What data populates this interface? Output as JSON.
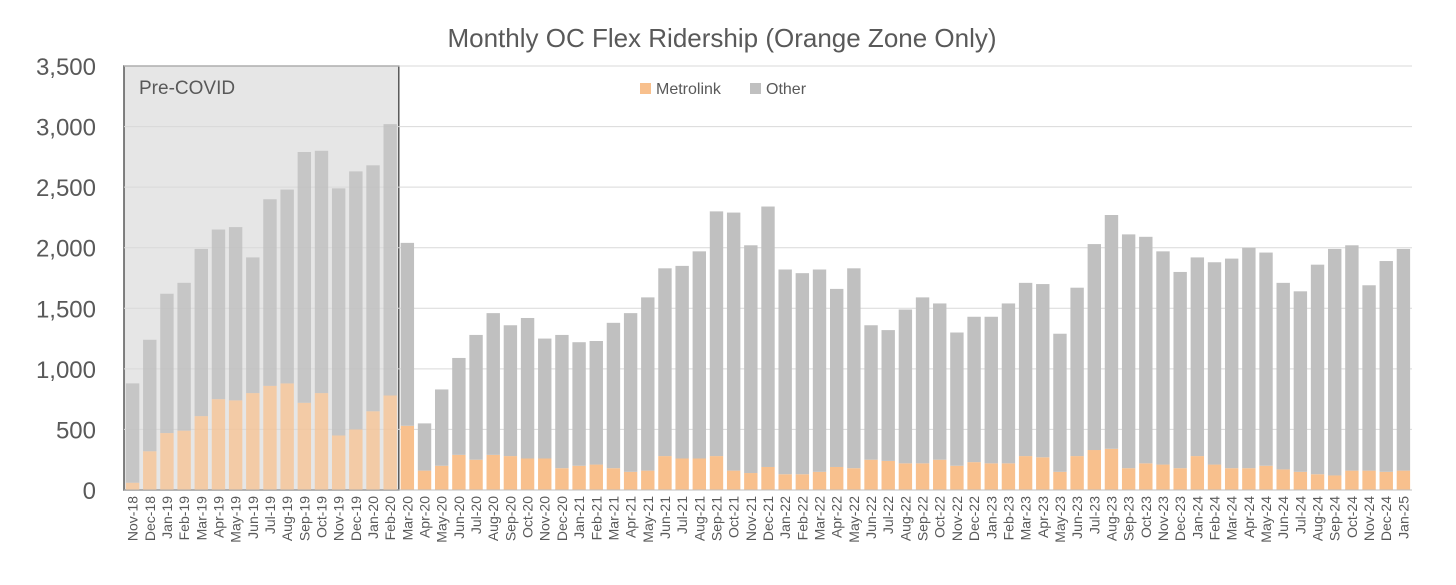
{
  "chart_data": {
    "type": "bar",
    "stacked": true,
    "title": "Monthly OC Flex Ridership (Orange Zone Only)",
    "xlabel": "",
    "ylabel": "",
    "ylim": [
      0,
      3500
    ],
    "y_ticks": [
      0,
      500,
      1000,
      1500,
      2000,
      2500,
      3000,
      3500
    ],
    "y_tick_labels": [
      "0",
      "500",
      "1,000",
      "1,500",
      "2,000",
      "2,500",
      "3,000",
      "3,500"
    ],
    "grid": true,
    "legend_position": "top-center",
    "shaded_region": {
      "label": "Pre-COVID",
      "from": "Nov-18",
      "to": "Feb-20",
      "color": "#e6e6e6"
    },
    "categories": [
      "Nov-18",
      "Dec-18",
      "Jan-19",
      "Feb-19",
      "Mar-19",
      "Apr-19",
      "May-19",
      "Jun-19",
      "Jul-19",
      "Aug-19",
      "Sep-19",
      "Oct-19",
      "Nov-19",
      "Dec-19",
      "Jan-20",
      "Feb-20",
      "Mar-20",
      "Apr-20",
      "May-20",
      "Jun-20",
      "Jul-20",
      "Aug-20",
      "Sep-20",
      "Oct-20",
      "Nov-20",
      "Dec-20",
      "Jan-21",
      "Feb-21",
      "Mar-21",
      "Apr-21",
      "May-21",
      "Jun-21",
      "Jul-21",
      "Aug-21",
      "Sep-21",
      "Oct-21",
      "Nov-21",
      "Dec-21",
      "Jan-22",
      "Feb-22",
      "Mar-22",
      "Apr-22",
      "May-22",
      "Jun-22",
      "Jul-22",
      "Aug-22",
      "Sep-22",
      "Oct-22",
      "Nov-22",
      "Dec-22",
      "Jan-23",
      "Feb-23",
      "Mar-23",
      "Apr-23",
      "May-23",
      "Jun-23",
      "Jul-23",
      "Aug-23",
      "Sep-23",
      "Oct-23",
      "Nov-23",
      "Dec-23",
      "Jan-24",
      "Feb-24",
      "Mar-24",
      "Apr-24",
      "May-24",
      "Jun-24",
      "Jul-24",
      "Aug-24",
      "Sep-24",
      "Oct-24",
      "Nov-24",
      "Dec-24",
      "Jan-25"
    ],
    "series": [
      {
        "name": "Metrolink",
        "color": "#f8c08d",
        "values": [
          60,
          320,
          470,
          490,
          610,
          750,
          740,
          800,
          860,
          880,
          720,
          800,
          450,
          500,
          650,
          780,
          530,
          160,
          200,
          290,
          250,
          290,
          280,
          260,
          260,
          180,
          200,
          210,
          180,
          150,
          160,
          280,
          260,
          260,
          280,
          160,
          140,
          190,
          130,
          130,
          150,
          190,
          180,
          250,
          240,
          220,
          220,
          250,
          200,
          230,
          220,
          220,
          280,
          270,
          150,
          280,
          330,
          340,
          180,
          220,
          210,
          180,
          280,
          210,
          180,
          180,
          200,
          170,
          150,
          130,
          120,
          160,
          160,
          150,
          160
        ]
      },
      {
        "name": "Other",
        "color": "#c0c0c0",
        "values": [
          820,
          920,
          1150,
          1220,
          1380,
          1400,
          1430,
          1120,
          1540,
          1600,
          2070,
          2000,
          2040,
          2130,
          2030,
          2240,
          1510,
          390,
          630,
          800,
          1030,
          1170,
          1080,
          1160,
          990,
          1100,
          1020,
          1020,
          1200,
          1310,
          1430,
          1550,
          1590,
          1710,
          2020,
          2130,
          1880,
          2150,
          1690,
          1660,
          1670,
          1470,
          1650,
          1110,
          1080,
          1270,
          1370,
          1290,
          1100,
          1200,
          1210,
          1320,
          1430,
          1430,
          1140,
          1390,
          1700,
          1930,
          1930,
          1870,
          1760,
          1620,
          1640,
          1670,
          1730,
          1820,
          1760,
          1540,
          1490,
          1730,
          1870,
          1860,
          1530,
          1740,
          1830
        ]
      }
    ]
  }
}
